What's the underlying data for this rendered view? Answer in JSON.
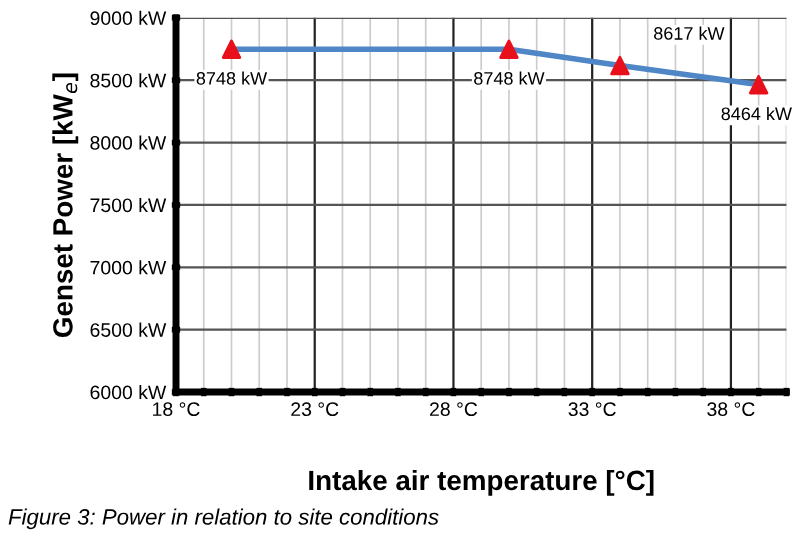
{
  "chart_data": {
    "type": "line",
    "xlabel": "Intake air temperature [°C]",
    "ylabel": "Genset Power [kW$_{e}$]",
    "x": [
      20,
      30,
      34,
      39
    ],
    "series": [
      {
        "color": "#4f86c6",
        "colors": [
          "#e8101a",
          "#e8101a",
          "#e8101a",
          "#e8101a"
        ],
        "values": [
          8748,
          8748,
          8617,
          8464
        ],
        "value_labels": [
          "8748 kW",
          "8748 kW",
          "8617 kW",
          "8464 kW"
        ]
      }
    ],
    "marker": "triangle",
    "line_style": "solid",
    "grid": true,
    "legend": false,
    "xlim": [
      18,
      40
    ],
    "xticks": [
      {
        "value": 18,
        "label": "18 °C"
      },
      {
        "value": 19,
        "label": null
      },
      {
        "value": 20,
        "label": null
      },
      {
        "value": 21,
        "label": null
      },
      {
        "value": 22,
        "label": null
      },
      {
        "value": 23,
        "label": "23 °C"
      },
      {
        "value": 24,
        "label": null
      },
      {
        "value": 25,
        "label": null
      },
      {
        "value": 26,
        "label": null
      },
      {
        "value": 27,
        "label": null
      },
      {
        "value": 28,
        "label": "28 °C"
      },
      {
        "value": 29,
        "label": null
      },
      {
        "value": 30,
        "label": null
      },
      {
        "value": 31,
        "label": null
      },
      {
        "value": 32,
        "label": null
      },
      {
        "value": 33,
        "label": "33 °C"
      },
      {
        "value": 34,
        "label": null
      },
      {
        "value": 35,
        "label": null
      },
      {
        "value": 36,
        "label": null
      },
      {
        "value": 37,
        "label": null
      },
      {
        "value": 38,
        "label": "38 °C"
      },
      {
        "value": 39,
        "label": null
      },
      {
        "value": 40,
        "label": null
      }
    ],
    "ylim": [
      6000,
      9000
    ],
    "yticks": [
      {
        "value": 6000,
        "label": "6000 kW"
      },
      {
        "value": 6500,
        "label": "6500 kW"
      },
      {
        "value": 7000,
        "label": "7000 kW"
      },
      {
        "value": 7500,
        "label": "7500 kW"
      },
      {
        "value": 8000,
        "label": "8000 kW"
      },
      {
        "value": 8500,
        "label": "8500 kW"
      },
      {
        "value": 9000,
        "label": "9000 kW"
      }
    ],
    "annotations": [
      "Figure 3: Power in relation to site conditions"
    ]
  }
}
